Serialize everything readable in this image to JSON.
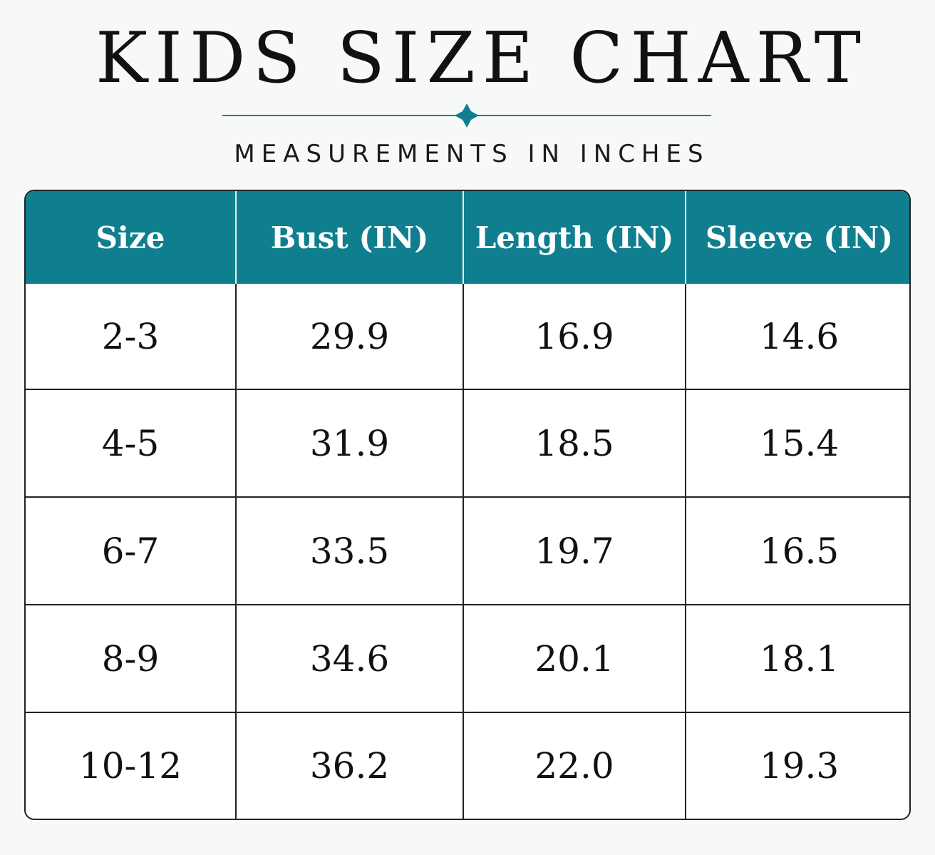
{
  "header": {
    "title": "KIDS SIZE CHART",
    "subtitle": "MEASUREMENTS IN INCHES"
  },
  "colors": {
    "accent": "#0f7f8f",
    "text": "#111111",
    "border": "#222222"
  },
  "table": {
    "columns": [
      "Size",
      "Bust (IN)",
      "Length (IN)",
      "Sleeve (IN)"
    ],
    "rows": [
      [
        "2-3",
        "29.9",
        "16.9",
        "14.6"
      ],
      [
        "4-5",
        "31.9",
        "18.5",
        "15.4"
      ],
      [
        "6-7",
        "33.5",
        "19.7",
        "16.5"
      ],
      [
        "8-9",
        "34.6",
        "20.1",
        "18.1"
      ],
      [
        "10-12",
        "36.2",
        "22.0",
        "19.3"
      ]
    ]
  }
}
